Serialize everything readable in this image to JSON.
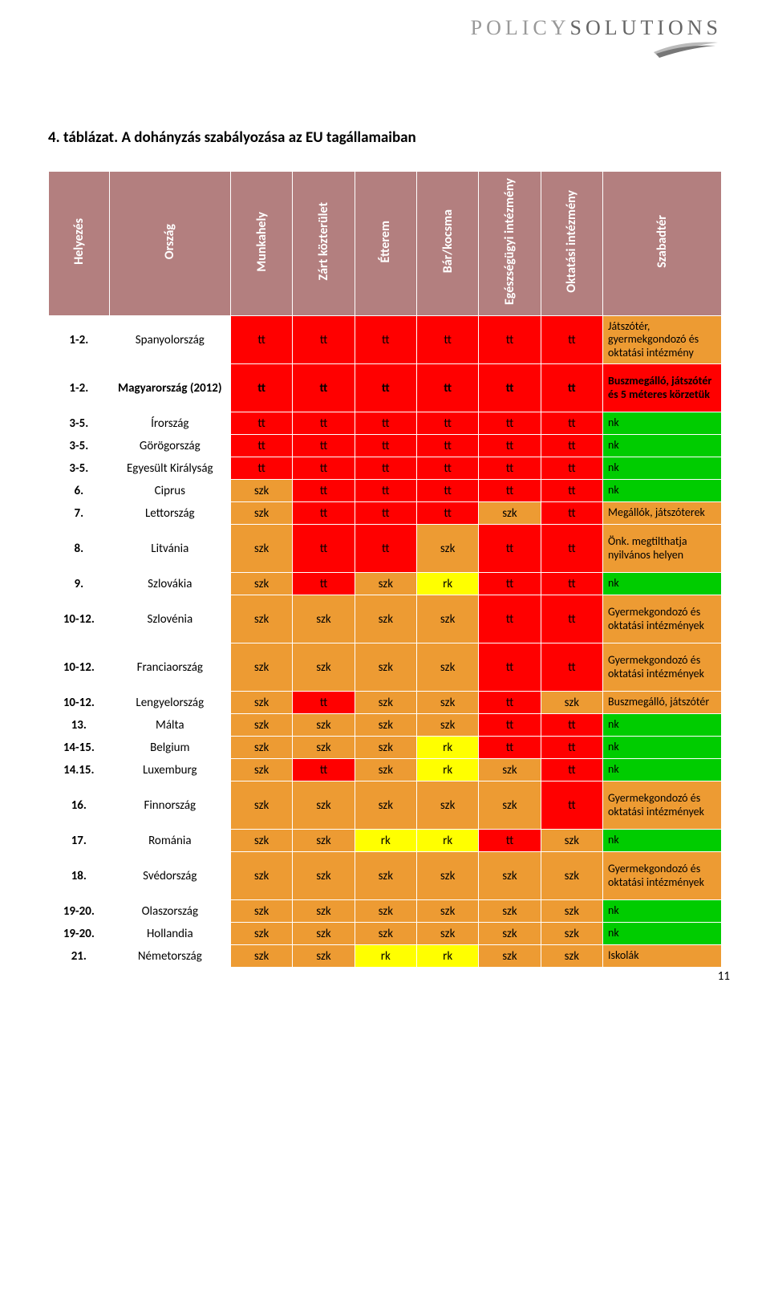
{
  "logo": {
    "part1": "POLICY",
    "part2": "SOLUTIONS"
  },
  "title": "4. táblázat. A dohányzás szabályozása az EU tagállamaiban",
  "page_number": "11",
  "colors": {
    "header_bg": "#b37f7f",
    "header_fg": "#ffffff",
    "red": "#ff0000",
    "orange": "#ed9b33",
    "yellow": "#ffff00",
    "green": "#00cc00",
    "white": "#ffffff"
  },
  "headers": {
    "rank": "Helyezés",
    "country": "Ország",
    "c1": "Munkahely",
    "c2": "Zárt közterület",
    "c3": "Étterem",
    "c4": "Bár/kocsma",
    "c5": "Egészségügyi intézmény",
    "c6": "Oktatási intézmény",
    "c7": "Szabadtér"
  },
  "rows": [
    {
      "rank": "1-2.",
      "rank_bold": true,
      "country": "Spanyolország",
      "cells": [
        {
          "v": "tt",
          "c": "red"
        },
        {
          "v": "tt",
          "c": "red"
        },
        {
          "v": "tt",
          "c": "red"
        },
        {
          "v": "tt",
          "c": "red"
        },
        {
          "v": "tt",
          "c": "red"
        },
        {
          "v": "tt",
          "c": "red"
        },
        {
          "v": "Játszótér, gyermekgondozó és oktatási intézmény",
          "c": "orange",
          "last": true
        }
      ],
      "tall": true
    },
    {
      "rank": "1-2.",
      "rank_bold": true,
      "country": "Magyarország (2012)",
      "country_bold": true,
      "cells": [
        {
          "v": "tt",
          "c": "red",
          "bold": true
        },
        {
          "v": "tt",
          "c": "red",
          "bold": true
        },
        {
          "v": "tt",
          "c": "red",
          "bold": true
        },
        {
          "v": "tt",
          "c": "red",
          "bold": true
        },
        {
          "v": "tt",
          "c": "red",
          "bold": true
        },
        {
          "v": "tt",
          "c": "red",
          "bold": true
        },
        {
          "v": "Buszmegálló, játszótér és 5 méteres körzetük",
          "c": "red",
          "last": true,
          "bold": true
        }
      ],
      "tall": true
    },
    {
      "rank": "3-5.",
      "rank_bold": true,
      "country": "Írország",
      "cells": [
        {
          "v": "tt",
          "c": "red"
        },
        {
          "v": "tt",
          "c": "red"
        },
        {
          "v": "tt",
          "c": "red"
        },
        {
          "v": "tt",
          "c": "red"
        },
        {
          "v": "tt",
          "c": "red"
        },
        {
          "v": "tt",
          "c": "red"
        },
        {
          "v": "nk",
          "c": "green",
          "last": true
        }
      ]
    },
    {
      "rank": "3-5.",
      "rank_bold": true,
      "country": "Görögország",
      "cells": [
        {
          "v": "tt",
          "c": "red"
        },
        {
          "v": "tt",
          "c": "red"
        },
        {
          "v": "tt",
          "c": "red"
        },
        {
          "v": "tt",
          "c": "red"
        },
        {
          "v": "tt",
          "c": "red"
        },
        {
          "v": "tt",
          "c": "red"
        },
        {
          "v": "nk",
          "c": "green",
          "last": true
        }
      ]
    },
    {
      "rank": "3-5.",
      "rank_bold": true,
      "country": "Egyesült Királyság",
      "cells": [
        {
          "v": "tt",
          "c": "red"
        },
        {
          "v": "tt",
          "c": "red"
        },
        {
          "v": "tt",
          "c": "red"
        },
        {
          "v": "tt",
          "c": "red"
        },
        {
          "v": "tt",
          "c": "red"
        },
        {
          "v": "tt",
          "c": "red"
        },
        {
          "v": "nk",
          "c": "green",
          "last": true
        }
      ]
    },
    {
      "rank": "6.",
      "rank_bold": true,
      "country": "Ciprus",
      "cells": [
        {
          "v": "szk",
          "c": "orange"
        },
        {
          "v": "tt",
          "c": "red"
        },
        {
          "v": "tt",
          "c": "red"
        },
        {
          "v": "tt",
          "c": "red"
        },
        {
          "v": "tt",
          "c": "red"
        },
        {
          "v": "tt",
          "c": "red"
        },
        {
          "v": "nk",
          "c": "green",
          "last": true
        }
      ]
    },
    {
      "rank": "7.",
      "rank_bold": true,
      "country": "Lettország",
      "cells": [
        {
          "v": "szk",
          "c": "orange"
        },
        {
          "v": "tt",
          "c": "red"
        },
        {
          "v": "tt",
          "c": "red"
        },
        {
          "v": "tt",
          "c": "red"
        },
        {
          "v": "szk",
          "c": "orange"
        },
        {
          "v": "tt",
          "c": "red"
        },
        {
          "v": "Megállók, játszóterek",
          "c": "orange",
          "last": true
        }
      ]
    },
    {
      "rank": "8.",
      "rank_bold": true,
      "country": "Litvánia",
      "cells": [
        {
          "v": "szk",
          "c": "orange"
        },
        {
          "v": "tt",
          "c": "red"
        },
        {
          "v": "tt",
          "c": "red"
        },
        {
          "v": "szk",
          "c": "orange"
        },
        {
          "v": "tt",
          "c": "red"
        },
        {
          "v": "tt",
          "c": "red"
        },
        {
          "v": "Önk. megtilthatja nyilvános helyen",
          "c": "orange",
          "last": true
        }
      ],
      "tall": true
    },
    {
      "rank": "9.",
      "rank_bold": true,
      "country": "Szlovákia",
      "cells": [
        {
          "v": "szk",
          "c": "orange"
        },
        {
          "v": "tt",
          "c": "red"
        },
        {
          "v": "szk",
          "c": "orange"
        },
        {
          "v": "rk",
          "c": "yellow"
        },
        {
          "v": "tt",
          "c": "red"
        },
        {
          "v": "tt",
          "c": "red"
        },
        {
          "v": "nk",
          "c": "green",
          "last": true
        }
      ]
    },
    {
      "rank": "10-12.",
      "rank_bold": true,
      "country": "Szlovénia",
      "cells": [
        {
          "v": "szk",
          "c": "orange"
        },
        {
          "v": "szk",
          "c": "orange"
        },
        {
          "v": "szk",
          "c": "orange"
        },
        {
          "v": "szk",
          "c": "orange"
        },
        {
          "v": "tt",
          "c": "red"
        },
        {
          "v": "tt",
          "c": "red"
        },
        {
          "v": "Gyermekgondozó és oktatási intézmények",
          "c": "orange",
          "last": true
        }
      ],
      "tall": true
    },
    {
      "rank": "10-12.",
      "rank_bold": true,
      "country": "Franciaország",
      "cells": [
        {
          "v": "szk",
          "c": "orange"
        },
        {
          "v": "szk",
          "c": "orange"
        },
        {
          "v": "szk",
          "c": "orange"
        },
        {
          "v": "szk",
          "c": "orange"
        },
        {
          "v": "tt",
          "c": "red"
        },
        {
          "v": "tt",
          "c": "red"
        },
        {
          "v": "Gyermekgondozó és oktatási intézmények",
          "c": "orange",
          "last": true
        }
      ],
      "tall": true
    },
    {
      "rank": "10-12.",
      "rank_bold": true,
      "country": "Lengyelország",
      "cells": [
        {
          "v": "szk",
          "c": "orange"
        },
        {
          "v": "tt",
          "c": "red"
        },
        {
          "v": "szk",
          "c": "orange"
        },
        {
          "v": "szk",
          "c": "orange"
        },
        {
          "v": "tt",
          "c": "red"
        },
        {
          "v": "szk",
          "c": "orange"
        },
        {
          "v": "Buszmegálló, játszótér",
          "c": "orange",
          "last": true
        }
      ]
    },
    {
      "rank": "13.",
      "rank_bold": true,
      "country": "Málta",
      "cells": [
        {
          "v": "szk",
          "c": "orange"
        },
        {
          "v": "szk",
          "c": "orange"
        },
        {
          "v": "szk",
          "c": "orange"
        },
        {
          "v": "szk",
          "c": "orange"
        },
        {
          "v": "tt",
          "c": "red"
        },
        {
          "v": "tt",
          "c": "red"
        },
        {
          "v": "nk",
          "c": "green",
          "last": true
        }
      ]
    },
    {
      "rank": "14-15.",
      "rank_bold": true,
      "country": "Belgium",
      "cells": [
        {
          "v": "szk",
          "c": "orange"
        },
        {
          "v": "szk",
          "c": "orange"
        },
        {
          "v": "szk",
          "c": "orange"
        },
        {
          "v": "rk",
          "c": "yellow"
        },
        {
          "v": "tt",
          "c": "red"
        },
        {
          "v": "tt",
          "c": "red"
        },
        {
          "v": "nk",
          "c": "green",
          "last": true
        }
      ]
    },
    {
      "rank": "14.15.",
      "rank_bold": true,
      "country": "Luxemburg",
      "cells": [
        {
          "v": "szk",
          "c": "orange"
        },
        {
          "v": "tt",
          "c": "red"
        },
        {
          "v": "szk",
          "c": "orange"
        },
        {
          "v": "rk",
          "c": "yellow"
        },
        {
          "v": "szk",
          "c": "orange"
        },
        {
          "v": "tt",
          "c": "red"
        },
        {
          "v": "nk",
          "c": "green",
          "last": true
        }
      ]
    },
    {
      "rank": "16.",
      "rank_bold": true,
      "country": "Finnország",
      "cells": [
        {
          "v": "szk",
          "c": "orange"
        },
        {
          "v": "szk",
          "c": "orange"
        },
        {
          "v": "szk",
          "c": "orange"
        },
        {
          "v": "szk",
          "c": "orange"
        },
        {
          "v": "szk",
          "c": "orange"
        },
        {
          "v": "tt",
          "c": "red"
        },
        {
          "v": "Gyermekgondozó és oktatási intézmények",
          "c": "orange",
          "last": true
        }
      ],
      "tall": true
    },
    {
      "rank": "17.",
      "rank_bold": true,
      "country": "Románia",
      "cells": [
        {
          "v": "szk",
          "c": "orange"
        },
        {
          "v": "szk",
          "c": "orange"
        },
        {
          "v": "rk",
          "c": "yellow"
        },
        {
          "v": "rk",
          "c": "yellow"
        },
        {
          "v": "tt",
          "c": "red"
        },
        {
          "v": "szk",
          "c": "orange"
        },
        {
          "v": "nk",
          "c": "green",
          "last": true
        }
      ]
    },
    {
      "rank": "18.",
      "rank_bold": true,
      "country": "Svédország",
      "cells": [
        {
          "v": "szk",
          "c": "orange"
        },
        {
          "v": "szk",
          "c": "orange"
        },
        {
          "v": "szk",
          "c": "orange"
        },
        {
          "v": "szk",
          "c": "orange"
        },
        {
          "v": "szk",
          "c": "orange"
        },
        {
          "v": "szk",
          "c": "orange"
        },
        {
          "v": "Gyermekgondozó és oktatási intézmények",
          "c": "orange",
          "last": true
        }
      ],
      "tall": true
    },
    {
      "rank": "19-20.",
      "rank_bold": true,
      "country": "Olaszország",
      "cells": [
        {
          "v": "szk",
          "c": "orange"
        },
        {
          "v": "szk",
          "c": "orange"
        },
        {
          "v": "szk",
          "c": "orange"
        },
        {
          "v": "szk",
          "c": "orange"
        },
        {
          "v": "szk",
          "c": "orange"
        },
        {
          "v": "szk",
          "c": "orange"
        },
        {
          "v": "nk",
          "c": "green",
          "last": true
        }
      ]
    },
    {
      "rank": "19-20.",
      "rank_bold": true,
      "country": "Hollandia",
      "cells": [
        {
          "v": "szk",
          "c": "orange"
        },
        {
          "v": "szk",
          "c": "orange"
        },
        {
          "v": "szk",
          "c": "orange"
        },
        {
          "v": "szk",
          "c": "orange"
        },
        {
          "v": "szk",
          "c": "orange"
        },
        {
          "v": "szk",
          "c": "orange"
        },
        {
          "v": "nk",
          "c": "green",
          "last": true
        }
      ]
    },
    {
      "rank": "21.",
      "rank_bold": true,
      "country": "Németország",
      "cells": [
        {
          "v": "szk",
          "c": "orange"
        },
        {
          "v": "szk",
          "c": "orange"
        },
        {
          "v": "rk",
          "c": "yellow"
        },
        {
          "v": "rk",
          "c": "yellow"
        },
        {
          "v": "szk",
          "c": "orange"
        },
        {
          "v": "szk",
          "c": "orange"
        },
        {
          "v": "Iskolák",
          "c": "orange",
          "last": true
        }
      ]
    }
  ]
}
